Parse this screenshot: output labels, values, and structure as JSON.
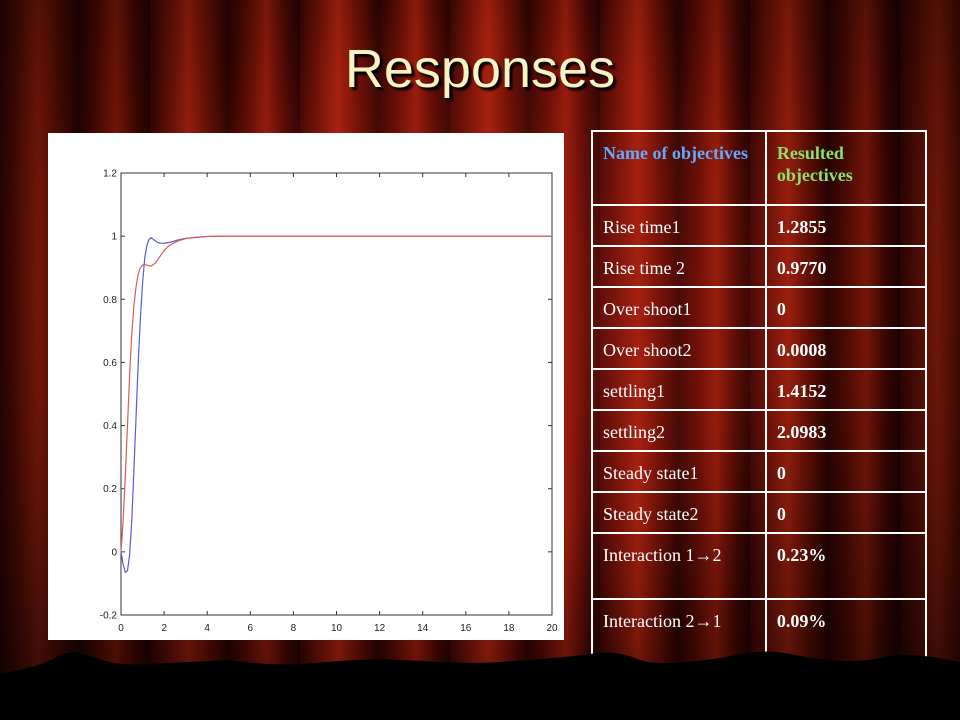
{
  "slide": {
    "title": "Responses"
  },
  "table": {
    "headers": [
      "Name of objectives",
      "Resulted objectives"
    ],
    "rows": [
      {
        "name": "Rise time1",
        "value": "1.2855"
      },
      {
        "name": "Rise time 2",
        "value": "0.9770"
      },
      {
        "name": "Over shoot1",
        "value": "0"
      },
      {
        "name": "Over shoot2",
        "value": "0.0008"
      },
      {
        "name": "settling1",
        "value": "1.4152"
      },
      {
        "name": "settling2",
        "value": "2.0983"
      },
      {
        "name": "Steady state1",
        "value": "0"
      },
      {
        "name": "Steady state2",
        "value": "0"
      },
      {
        "name": "Interaction 1→2",
        "value": "0.23%"
      },
      {
        "name": "Interaction 2→1",
        "value": "0.09%"
      }
    ]
  },
  "colors": {
    "header_name": "#66aaff",
    "header_value": "#8fe06a",
    "series_blue": "#5a5ad8",
    "series_red": "#e05a5a"
  },
  "chart_data": {
    "type": "line",
    "title": "",
    "xlabel": "",
    "ylabel": "",
    "xlim": [
      0,
      20
    ],
    "ylim": [
      -0.2,
      1.2
    ],
    "xticks": [
      0,
      2,
      4,
      6,
      8,
      10,
      12,
      14,
      16,
      18,
      20
    ],
    "yticks": [
      -0.2,
      0,
      0.2,
      0.4,
      0.6,
      0.8,
      1,
      1.2
    ],
    "grid": false,
    "legend": "none",
    "series": [
      {
        "color": "#5a5ad8",
        "x": [
          0,
          0.1,
          0.2,
          0.3,
          0.4,
          0.5,
          0.6,
          0.7,
          0.8,
          0.9,
          1.0,
          1.1,
          1.2,
          1.3,
          1.4,
          1.5,
          1.6,
          1.7,
          1.8,
          2.0,
          2.3,
          2.6,
          3.0,
          4.0,
          5.0,
          6.0,
          8.0,
          10.0,
          14.0,
          20.0
        ],
        "y": [
          0,
          -0.04,
          -0.065,
          -0.06,
          -0.01,
          0.1,
          0.26,
          0.43,
          0.6,
          0.74,
          0.85,
          0.93,
          0.97,
          0.99,
          0.995,
          0.99,
          0.985,
          0.98,
          0.978,
          0.977,
          0.981,
          0.987,
          0.993,
          0.999,
          1.0,
          1.0,
          1.0,
          1.0,
          1.0,
          1.0
        ]
      },
      {
        "color": "#e05a5a",
        "x": [
          0,
          0.1,
          0.2,
          0.3,
          0.4,
          0.5,
          0.6,
          0.7,
          0.8,
          0.9,
          1.0,
          1.1,
          1.2,
          1.4,
          1.6,
          1.8,
          2.0,
          2.2,
          2.4,
          2.7,
          3.0,
          3.5,
          4.0,
          5.0,
          6.0,
          8.0,
          10.0,
          14.0,
          20.0
        ],
        "y": [
          0,
          0.1,
          0.24,
          0.4,
          0.56,
          0.69,
          0.78,
          0.84,
          0.88,
          0.9,
          0.908,
          0.91,
          0.908,
          0.905,
          0.915,
          0.935,
          0.955,
          0.968,
          0.977,
          0.986,
          0.992,
          0.997,
          0.999,
          1.0,
          1.0,
          1.0,
          1.0,
          1.0,
          1.0
        ]
      }
    ]
  }
}
